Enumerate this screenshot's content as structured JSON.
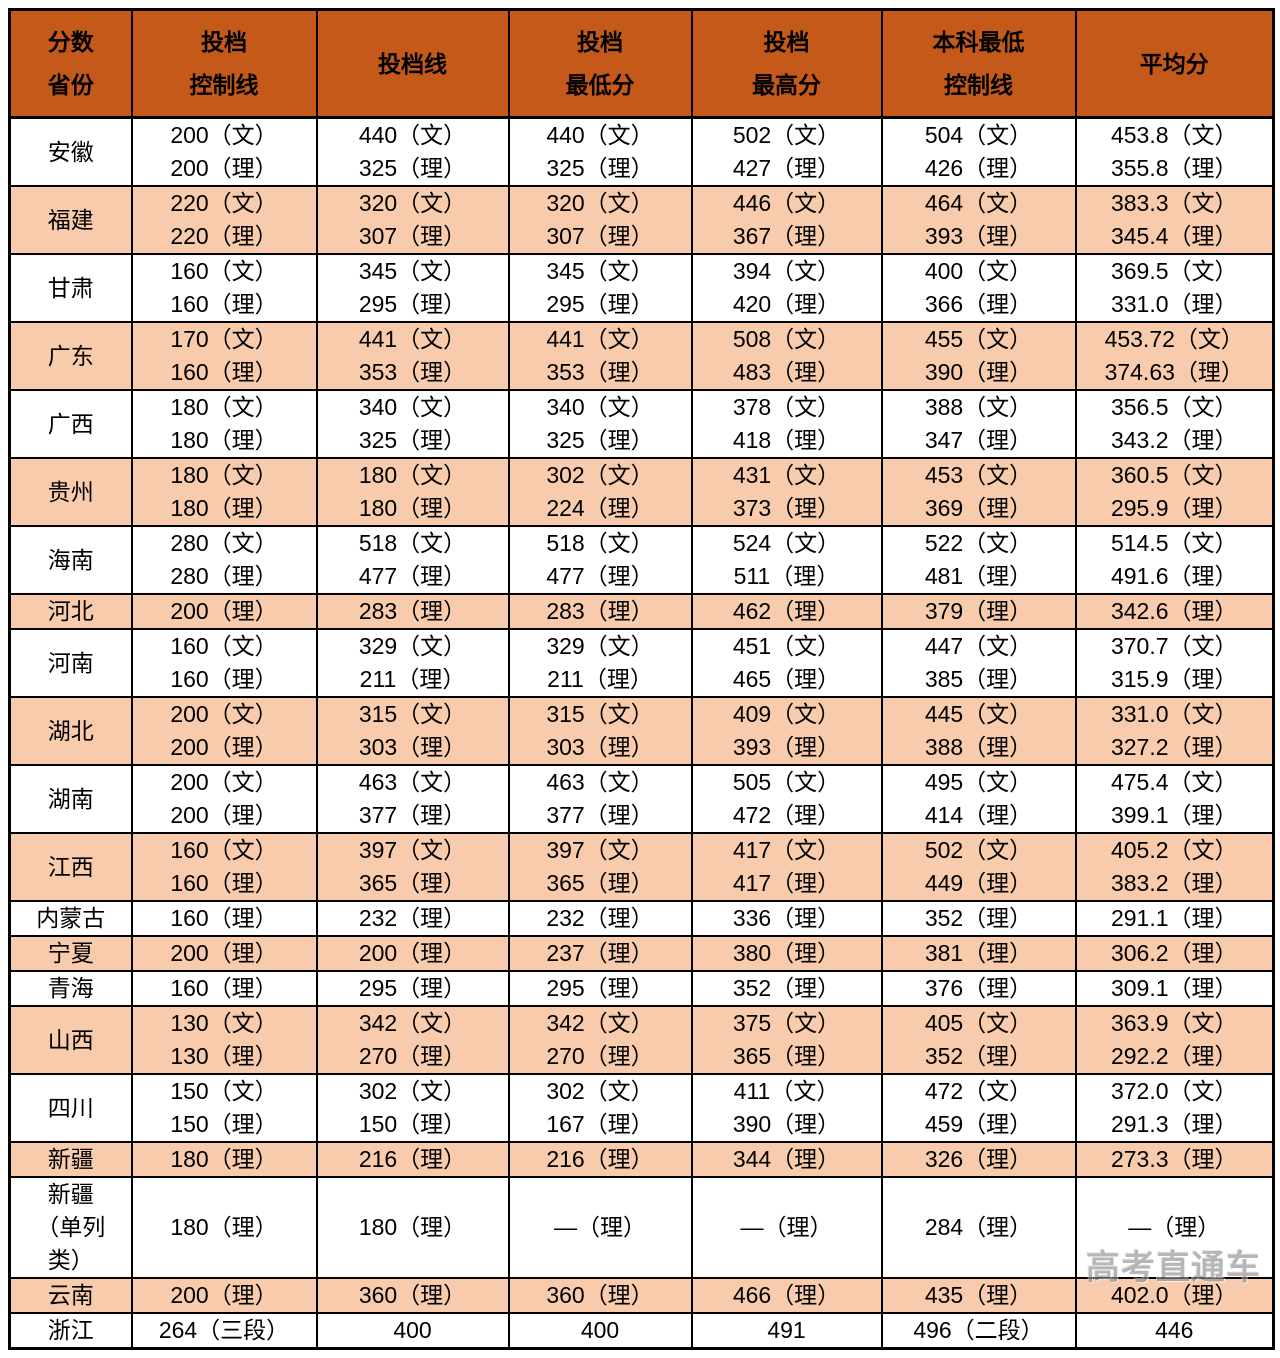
{
  "colors": {
    "header_bg": "#C5591A",
    "stripe_bg": "#F8CBAD",
    "border": "#000000",
    "body_text": "#000000",
    "watermark_text": "#8C8C8C",
    "page_bg": "#FFFFFF"
  },
  "watermark": {
    "text": "高考直通车"
  },
  "table": {
    "headers": [
      {
        "id": "province",
        "lines": [
          "分数",
          "省份"
        ]
      },
      {
        "id": "control-line",
        "lines": [
          "投档",
          "控制线"
        ]
      },
      {
        "id": "filing-line",
        "lines": [
          "投档线"
        ]
      },
      {
        "id": "filing-min",
        "lines": [
          "投档",
          "最低分"
        ]
      },
      {
        "id": "filing-max",
        "lines": [
          "投档",
          "最高分"
        ]
      },
      {
        "id": "ug-min-control",
        "lines": [
          "本科最低",
          "控制线"
        ]
      },
      {
        "id": "average",
        "lines": [
          "平均分"
        ]
      }
    ],
    "rows": [
      {
        "province": [
          "安徽"
        ],
        "shaded": false,
        "cells": [
          [
            "200（文）",
            "200（理）"
          ],
          [
            "440（文）",
            "325（理）"
          ],
          [
            "440（文）",
            "325（理）"
          ],
          [
            "502（文）",
            "427（理）"
          ],
          [
            "504（文）",
            "426（理）"
          ],
          [
            "453.8（文）",
            "355.8（理）"
          ]
        ]
      },
      {
        "province": [
          "福建"
        ],
        "shaded": true,
        "cells": [
          [
            "220（文）",
            "220（理）"
          ],
          [
            "320（文）",
            "307（理）"
          ],
          [
            "320（文）",
            "307（理）"
          ],
          [
            "446（文）",
            "367（理）"
          ],
          [
            "464（文）",
            "393（理）"
          ],
          [
            "383.3（文）",
            "345.4（理）"
          ]
        ]
      },
      {
        "province": [
          "甘肃"
        ],
        "shaded": false,
        "cells": [
          [
            "160（文）",
            "160（理）"
          ],
          [
            "345（文）",
            "295（理）"
          ],
          [
            "345（文）",
            "295（理）"
          ],
          [
            "394（文）",
            "420（理）"
          ],
          [
            "400（文）",
            "366（理）"
          ],
          [
            "369.5（文）",
            "331.0（理）"
          ]
        ]
      },
      {
        "province": [
          "广东"
        ],
        "shaded": true,
        "cells": [
          [
            "170（文）",
            "160（理）"
          ],
          [
            "441（文）",
            "353（理）"
          ],
          [
            "441（文）",
            "353（理）"
          ],
          [
            "508（文）",
            "483（理）"
          ],
          [
            "455（文）",
            "390（理）"
          ],
          [
            "453.72（文）",
            "374.63（理）"
          ]
        ]
      },
      {
        "province": [
          "广西"
        ],
        "shaded": false,
        "cells": [
          [
            "180（文）",
            "180（理）"
          ],
          [
            "340（文）",
            "325（理）"
          ],
          [
            "340（文）",
            "325（理）"
          ],
          [
            "378（文）",
            "418（理）"
          ],
          [
            "388（文）",
            "347（理）"
          ],
          [
            "356.5（文）",
            "343.2（理）"
          ]
        ]
      },
      {
        "province": [
          "贵州"
        ],
        "shaded": true,
        "cells": [
          [
            "180（文）",
            "180（理）"
          ],
          [
            "180（文）",
            "180（理）"
          ],
          [
            "302（文）",
            "224（理）"
          ],
          [
            "431（文）",
            "373（理）"
          ],
          [
            "453（文）",
            "369（理）"
          ],
          [
            "360.5（文）",
            "295.9（理）"
          ]
        ]
      },
      {
        "province": [
          "海南"
        ],
        "shaded": false,
        "cells": [
          [
            "280（文）",
            "280（理）"
          ],
          [
            "518（文）",
            "477（理）"
          ],
          [
            "518（文）",
            "477（理）"
          ],
          [
            "524（文）",
            "511（理）"
          ],
          [
            "522（文）",
            "481（理）"
          ],
          [
            "514.5（文）",
            "491.6（理）"
          ]
        ]
      },
      {
        "province": [
          "河北"
        ],
        "shaded": true,
        "cells": [
          [
            "200（理）"
          ],
          [
            "283（理）"
          ],
          [
            "283（理）"
          ],
          [
            "462（理）"
          ],
          [
            "379（理）"
          ],
          [
            "342.6（理）"
          ]
        ]
      },
      {
        "province": [
          "河南"
        ],
        "shaded": false,
        "cells": [
          [
            "160（文）",
            "160（理）"
          ],
          [
            "329（文）",
            "211（理）"
          ],
          [
            "329（文）",
            "211（理）"
          ],
          [
            "451（文）",
            "465（理）"
          ],
          [
            "447（文）",
            "385（理）"
          ],
          [
            "370.7（文）",
            "315.9（理）"
          ]
        ]
      },
      {
        "province": [
          "湖北"
        ],
        "shaded": true,
        "cells": [
          [
            "200（文）",
            "200（理）"
          ],
          [
            "315（文）",
            "303（理）"
          ],
          [
            "315（文）",
            "303（理）"
          ],
          [
            "409（文）",
            "393（理）"
          ],
          [
            "445（文）",
            "388（理）"
          ],
          [
            "331.0（文）",
            "327.2（理）"
          ]
        ]
      },
      {
        "province": [
          "湖南"
        ],
        "shaded": false,
        "cells": [
          [
            "200（文）",
            "200（理）"
          ],
          [
            "463（文）",
            "377（理）"
          ],
          [
            "463（文）",
            "377（理）"
          ],
          [
            "505（文）",
            "472（理）"
          ],
          [
            "495（文）",
            "414（理）"
          ],
          [
            "475.4（文）",
            "399.1（理）"
          ]
        ]
      },
      {
        "province": [
          "江西"
        ],
        "shaded": true,
        "cells": [
          [
            "160（文）",
            "160（理）"
          ],
          [
            "397（文）",
            "365（理）"
          ],
          [
            "397（文）",
            "365（理）"
          ],
          [
            "417（文）",
            "417（理）"
          ],
          [
            "502（文）",
            "449（理）"
          ],
          [
            "405.2（文）",
            "383.2（理）"
          ]
        ]
      },
      {
        "province": [
          "内蒙古"
        ],
        "shaded": false,
        "cells": [
          [
            "160（理）"
          ],
          [
            "232（理）"
          ],
          [
            "232（理）"
          ],
          [
            "336（理）"
          ],
          [
            "352（理）"
          ],
          [
            "291.1（理）"
          ]
        ]
      },
      {
        "province": [
          "宁夏"
        ],
        "shaded": true,
        "cells": [
          [
            "200（理）"
          ],
          [
            "200（理）"
          ],
          [
            "237（理）"
          ],
          [
            "380（理）"
          ],
          [
            "381（理）"
          ],
          [
            "306.2（理）"
          ]
        ]
      },
      {
        "province": [
          "青海"
        ],
        "shaded": false,
        "cells": [
          [
            "160（理）"
          ],
          [
            "295（理）"
          ],
          [
            "295（理）"
          ],
          [
            "352（理）"
          ],
          [
            "376（理）"
          ],
          [
            "309.1（理）"
          ]
        ]
      },
      {
        "province": [
          "山西"
        ],
        "shaded": true,
        "cells": [
          [
            "130（文）",
            "130（理）"
          ],
          [
            "342（文）",
            "270（理）"
          ],
          [
            "342（文）",
            "270（理）"
          ],
          [
            "375（文）",
            "365（理）"
          ],
          [
            "405（文）",
            "352（理）"
          ],
          [
            "363.9（文）",
            "292.2（理）"
          ]
        ]
      },
      {
        "province": [
          "四川"
        ],
        "shaded": false,
        "cells": [
          [
            "150（文）",
            "150（理）"
          ],
          [
            "302（文）",
            "150（理）"
          ],
          [
            "302（文）",
            "167（理）"
          ],
          [
            "411（文）",
            "390（理）"
          ],
          [
            "472（文）",
            "459（理）"
          ],
          [
            "372.0（文）",
            "291.3（理）"
          ]
        ]
      },
      {
        "province": [
          "新疆"
        ],
        "shaded": true,
        "cells": [
          [
            "180（理）"
          ],
          [
            "216（理）"
          ],
          [
            "216（理）"
          ],
          [
            "344（理）"
          ],
          [
            "326（理）"
          ],
          [
            "273.3（理）"
          ]
        ]
      },
      {
        "province": [
          "新疆",
          "（单列",
          "类）"
        ],
        "shaded": false,
        "cells": [
          [
            "180（理）"
          ],
          [
            "180（理）"
          ],
          [
            "—（理）"
          ],
          [
            "—（理）"
          ],
          [
            "284（理）"
          ],
          [
            "—（理）"
          ]
        ]
      },
      {
        "province": [
          "云南"
        ],
        "shaded": true,
        "cells": [
          [
            "200（理）"
          ],
          [
            "360（理）"
          ],
          [
            "360（理）"
          ],
          [
            "466（理）"
          ],
          [
            "435（理）"
          ],
          [
            "402.0（理）"
          ]
        ]
      },
      {
        "province": [
          "浙江"
        ],
        "shaded": false,
        "cells": [
          [
            "264（三段）"
          ],
          [
            "400"
          ],
          [
            "400"
          ],
          [
            "491"
          ],
          [
            "496（二段）"
          ],
          [
            "446"
          ]
        ]
      }
    ]
  }
}
